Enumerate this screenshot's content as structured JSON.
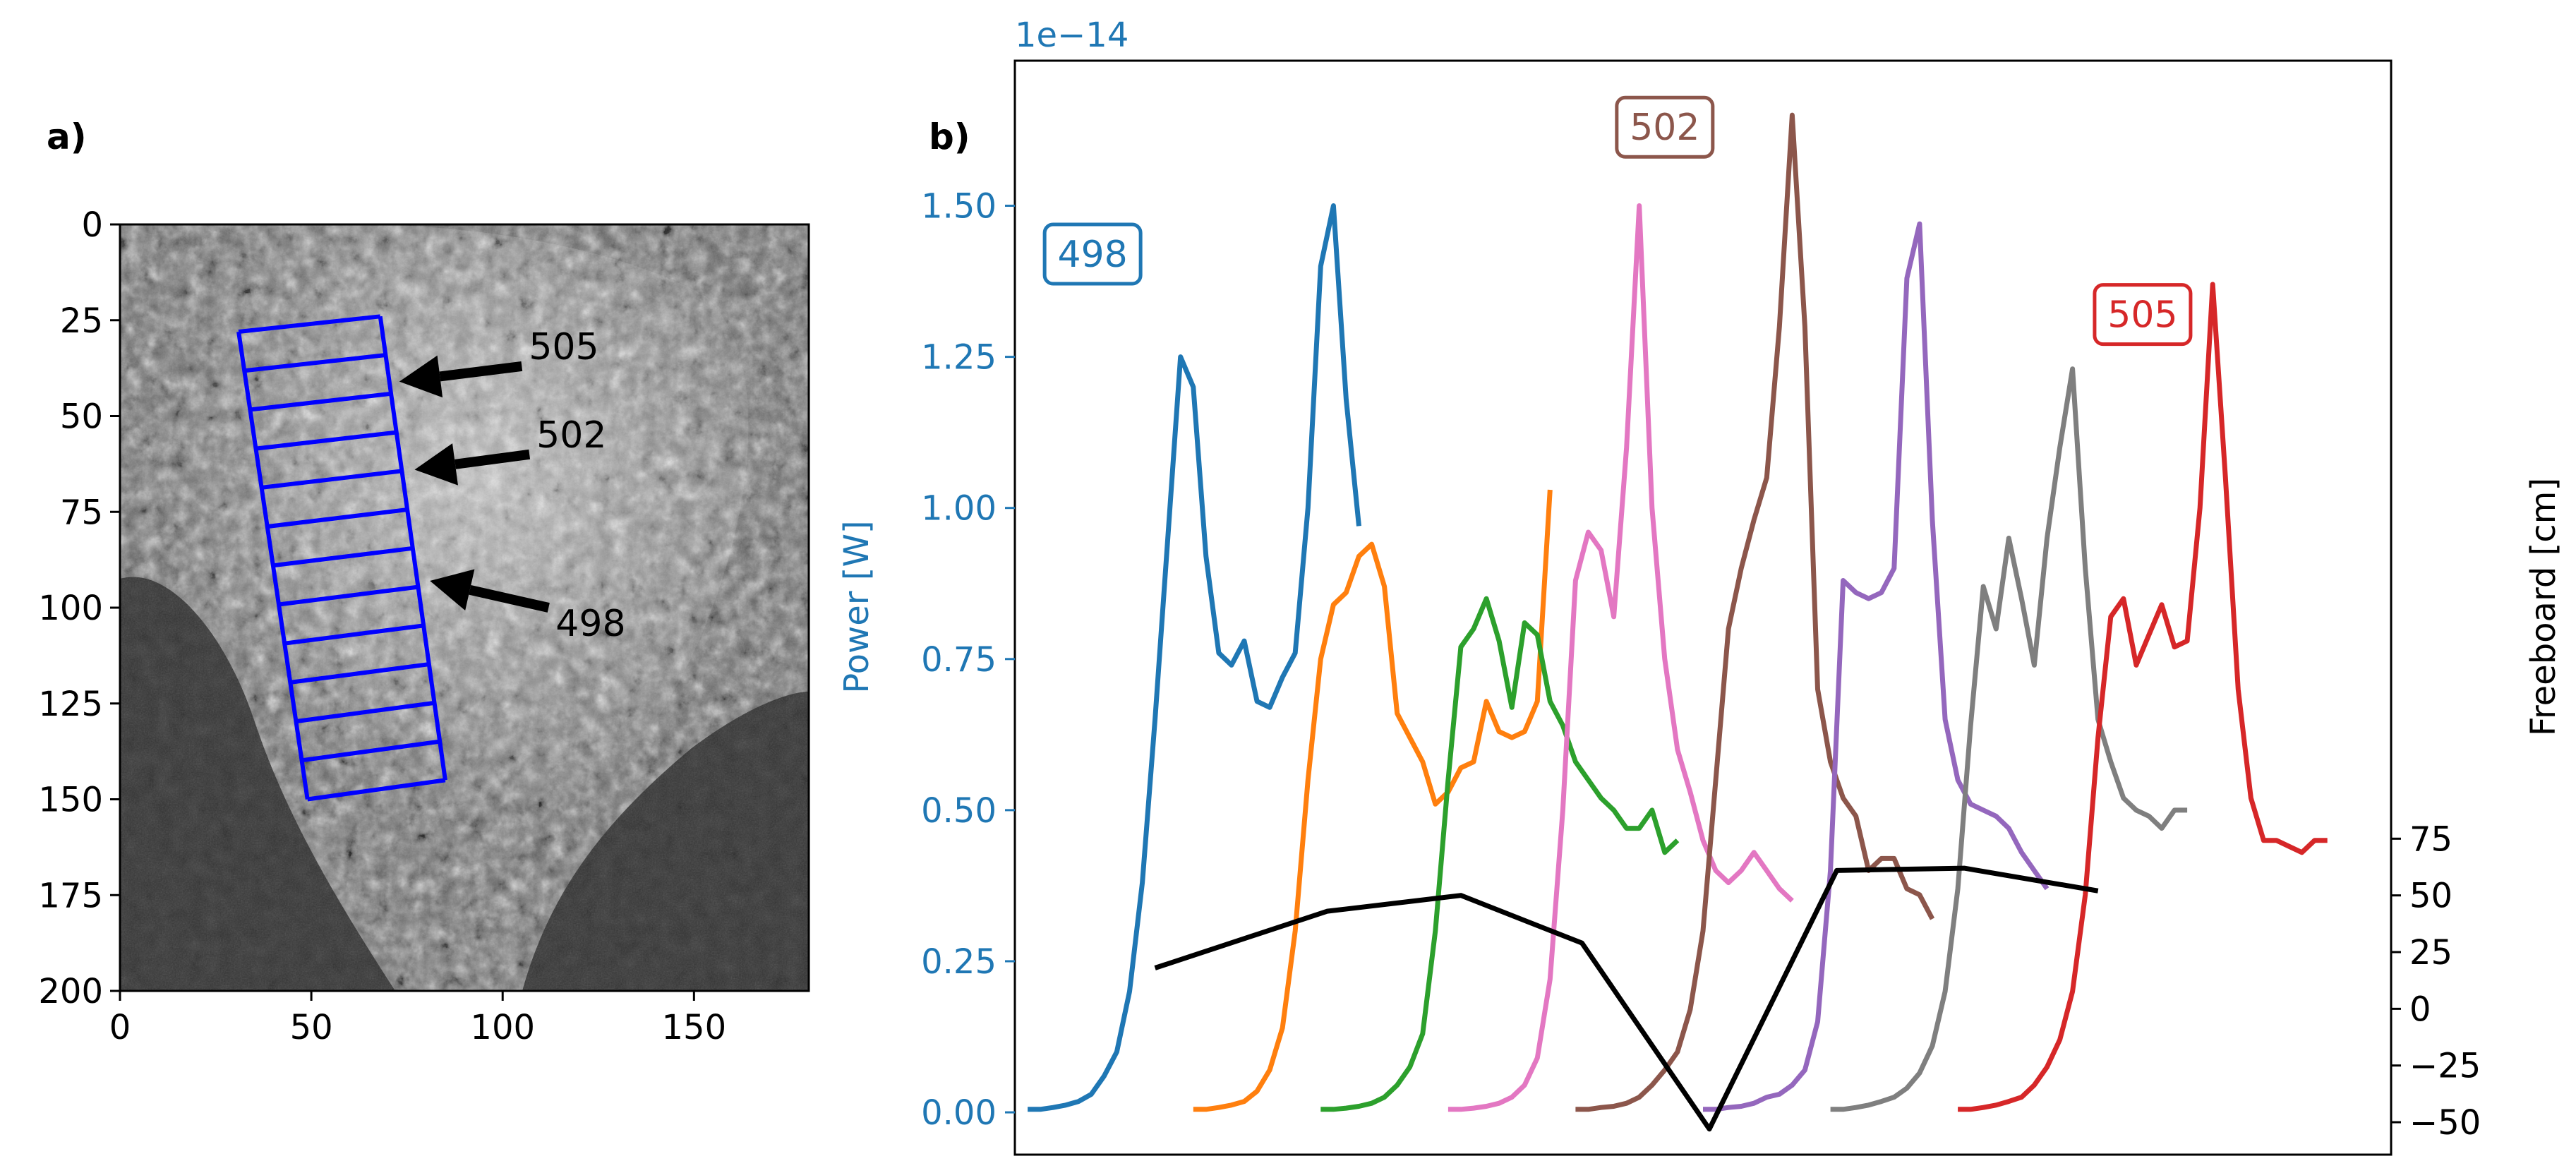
{
  "colors": {
    "blue": "#1f77b4",
    "orange": "#ff7f0e",
    "green": "#2ca02c",
    "pink": "#e377c2",
    "brown": "#8c564b",
    "purple": "#9467bd",
    "gray": "#7f7f7f",
    "red": "#d62728",
    "black": "#000000",
    "grid_blue": "#0000ff"
  },
  "chart_data": [
    {
      "type": "image",
      "panel_label": "a)",
      "xlim": [
        0,
        180
      ],
      "ylim": [
        200,
        0
      ],
      "xticks": [
        "0",
        "50",
        "100",
        "150"
      ],
      "yticks": [
        "0",
        "25",
        "50",
        "75",
        "100",
        "125",
        "150",
        "175",
        "200"
      ],
      "footprint_grid": {
        "corners_data": [
          [
            31,
            28
          ],
          [
            68,
            24
          ],
          [
            85,
            145
          ],
          [
            49,
            150
          ]
        ],
        "rows": 12
      },
      "annotations": [
        {
          "text": "505",
          "arrow_from": [
            105,
            37
          ],
          "arrow_to": [
            73,
            41
          ]
        },
        {
          "text": "502",
          "arrow_from": [
            107,
            60
          ],
          "arrow_to": [
            77,
            64
          ]
        },
        {
          "text": "498",
          "arrow_from": [
            112,
            100
          ],
          "arrow_to": [
            81,
            93
          ]
        }
      ]
    },
    {
      "type": "line",
      "panel_label": "b)",
      "offset_text": "1e−14",
      "ylabel_left": "Power [W]",
      "ylabel_right": "Freeboard [cm]",
      "ylim_left": [
        -0.07,
        1.74
      ],
      "ylim_right": [
        -64.3,
        418
      ],
      "left_ticks": [
        "0.00",
        "0.25",
        "0.50",
        "0.75",
        "1.00",
        "1.25",
        "1.50"
      ],
      "right_ticks": [
        "−50",
        "−25",
        "0",
        "25",
        "50",
        "75"
      ],
      "boxed_labels": [
        {
          "text": "498",
          "color_key": "blue",
          "x": 0.61,
          "y": 1.42
        },
        {
          "text": "502",
          "color_key": "brown",
          "x": 5.1,
          "y": 1.63
        },
        {
          "text": "505",
          "color_key": "red",
          "x": 8.85,
          "y": 1.32
        }
      ],
      "series": [
        {
          "name": "blue",
          "x0": 0.1,
          "values": [
            0.005,
            0.005,
            0.008,
            0.012,
            0.018,
            0.03,
            0.06,
            0.1,
            0.2,
            0.38,
            0.65,
            0.95,
            1.25,
            1.2,
            0.92,
            0.76,
            0.74,
            0.78,
            0.68,
            0.67,
            0.72,
            0.76,
            1.0,
            1.4,
            1.5,
            1.18,
            0.97
          ]
        },
        {
          "name": "orange",
          "x0": 1.4,
          "values": [
            0.005,
            0.005,
            0.008,
            0.012,
            0.018,
            0.035,
            0.07,
            0.14,
            0.3,
            0.55,
            0.75,
            0.84,
            0.86,
            0.92,
            0.94,
            0.87,
            0.66,
            0.62,
            0.58,
            0.51,
            0.53,
            0.57,
            0.58,
            0.68,
            0.63,
            0.62,
            0.63,
            0.68,
            1.03
          ]
        },
        {
          "name": "green",
          "x0": 2.4,
          "values": [
            0.005,
            0.005,
            0.007,
            0.01,
            0.015,
            0.025,
            0.045,
            0.075,
            0.13,
            0.3,
            0.55,
            0.77,
            0.8,
            0.85,
            0.78,
            0.67,
            0.81,
            0.79,
            0.68,
            0.64,
            0.58,
            0.55,
            0.52,
            0.5,
            0.47,
            0.47,
            0.5,
            0.43,
            0.45
          ]
        },
        {
          "name": "pink",
          "x0": 3.4,
          "values": [
            0.005,
            0.005,
            0.007,
            0.01,
            0.015,
            0.025,
            0.045,
            0.09,
            0.22,
            0.5,
            0.88,
            0.96,
            0.93,
            0.82,
            1.1,
            1.5,
            1.0,
            0.75,
            0.6,
            0.53,
            0.45,
            0.4,
            0.38,
            0.4,
            0.43,
            0.4,
            0.37,
            0.35
          ]
        },
        {
          "name": "brown",
          "x0": 4.4,
          "values": [
            0.005,
            0.005,
            0.008,
            0.01,
            0.015,
            0.025,
            0.045,
            0.07,
            0.1,
            0.17,
            0.3,
            0.55,
            0.8,
            0.9,
            0.98,
            1.05,
            1.3,
            1.65,
            1.3,
            0.7,
            0.58,
            0.52,
            0.49,
            0.4,
            0.42,
            0.42,
            0.37,
            0.36,
            0.32
          ]
        },
        {
          "name": "purple",
          "x0": 5.4,
          "values": [
            0.005,
            0.005,
            0.008,
            0.01,
            0.015,
            0.025,
            0.03,
            0.045,
            0.07,
            0.15,
            0.4,
            0.88,
            0.86,
            0.85,
            0.86,
            0.9,
            1.38,
            1.47,
            0.98,
            0.65,
            0.55,
            0.51,
            0.5,
            0.49,
            0.47,
            0.43,
            0.4,
            0.37
          ]
        },
        {
          "name": "gray",
          "x0": 6.4,
          "values": [
            0.005,
            0.005,
            0.008,
            0.012,
            0.018,
            0.025,
            0.04,
            0.065,
            0.11,
            0.2,
            0.37,
            0.64,
            0.87,
            0.8,
            0.95,
            0.85,
            0.74,
            0.95,
            1.1,
            1.23,
            0.9,
            0.65,
            0.58,
            0.52,
            0.5,
            0.49,
            0.47,
            0.5,
            0.5
          ]
        },
        {
          "name": "red",
          "x0": 7.4,
          "values": [
            0.005,
            0.005,
            0.008,
            0.012,
            0.018,
            0.025,
            0.045,
            0.075,
            0.12,
            0.2,
            0.36,
            0.62,
            0.82,
            0.85,
            0.74,
            0.79,
            0.84,
            0.77,
            0.78,
            1.0,
            1.37,
            1.05,
            0.7,
            0.52,
            0.45,
            0.45,
            0.44,
            0.43,
            0.45,
            0.45
          ]
        }
      ],
      "freeboard": {
        "x": [
          1.1,
          2.45,
          3.5,
          4.45,
          5.45,
          6.45,
          7.45,
          8.5
        ],
        "values": [
          18,
          43,
          50,
          29,
          -53,
          61,
          62,
          52
        ]
      }
    }
  ]
}
